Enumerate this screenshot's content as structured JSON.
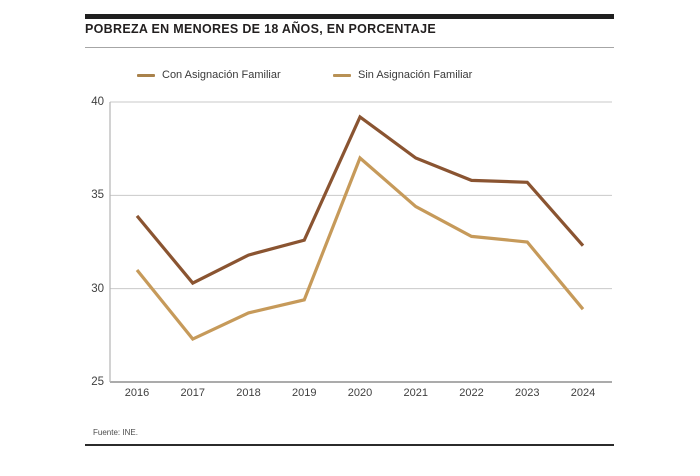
{
  "header": {
    "title": "POBREZA EN MENORES DE 18 AÑOS, EN PORCENTAJE"
  },
  "legend": {
    "items": [
      {
        "label": "Con Asignación Familiar",
        "marker_color": "#a9824b"
      },
      {
        "label": "Sin Asignación Familiar",
        "marker_color": "#b89155"
      }
    ]
  },
  "chart_data": {
    "type": "line",
    "title": "POBREZA EN MENORES DE 18 AÑOS, EN PORCENTAJE",
    "categories": [
      "2016",
      "2017",
      "2018",
      "2019",
      "2020",
      "2021",
      "2022",
      "2023",
      "2024"
    ],
    "series": [
      {
        "name": "Con Asignación Familiar",
        "color": "#8a5431",
        "values": [
          33.9,
          30.3,
          31.8,
          32.6,
          39.2,
          37.0,
          35.8,
          35.7,
          32.3
        ]
      },
      {
        "name": "Sin Asignación Familiar",
        "color": "#c69a5a",
        "values": [
          31.0,
          27.3,
          28.7,
          29.4,
          37.0,
          34.4,
          32.8,
          32.5,
          28.9
        ]
      }
    ],
    "xlabel": "",
    "ylabel": "",
    "ylim": [
      25,
      40
    ],
    "yticks": [
      40,
      35,
      30,
      25
    ],
    "grid": "horizontal",
    "legend_position": "top",
    "grid_color": "#c9c9c9",
    "axis_color": "#8f8f8f",
    "left_axis_color": "#b5b5b5"
  },
  "source": {
    "text": "Fuente: INE."
  }
}
